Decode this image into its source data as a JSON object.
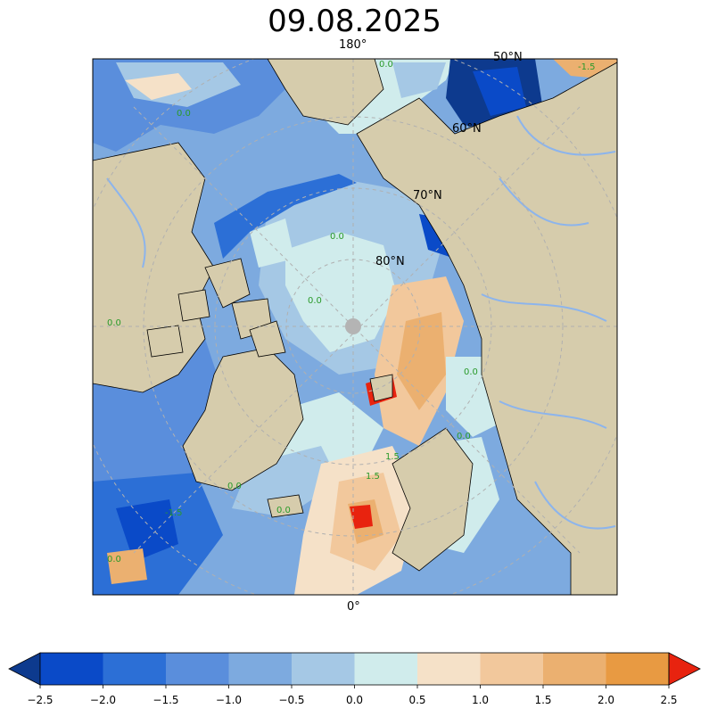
{
  "title": "09.08.2025",
  "map": {
    "projection": "north-polar-stereographic",
    "meridian_labels": {
      "top": "180°",
      "bottom": "0°"
    },
    "parallel_labels": [
      "50°N",
      "60°N",
      "70°N",
      "80°N"
    ],
    "contour_labels": [
      "0.0",
      "0.0",
      "0.0",
      "0.0",
      "0.0",
      "0.0",
      "0.0",
      "0.0",
      "1.5",
      "-1.5",
      "-1.5",
      "1.5",
      "0.0",
      "0.0"
    ],
    "colors": {
      "land": "#d6ccac",
      "rivers": "#8cb4ec",
      "coast": "#000000",
      "pole_marker": "#b4b4b4",
      "contour_label": "#2a9a2a"
    }
  },
  "colorbar": {
    "ticks": [
      "−2.5",
      "−2.0",
      "−1.5",
      "−1.0",
      "−0.5",
      "0.0",
      "0.5",
      "1.0",
      "1.5",
      "2.0",
      "2.5"
    ],
    "under_color": "#0d3a8e",
    "over_color": "#e8230f",
    "bin_colors": [
      "#0a4ac8",
      "#2c6fd6",
      "#5a8edc",
      "#7daadf",
      "#a5c8e5",
      "#d0ecec",
      "#f5e1c8",
      "#f2c89c",
      "#ebb070",
      "#e89a42"
    ]
  }
}
